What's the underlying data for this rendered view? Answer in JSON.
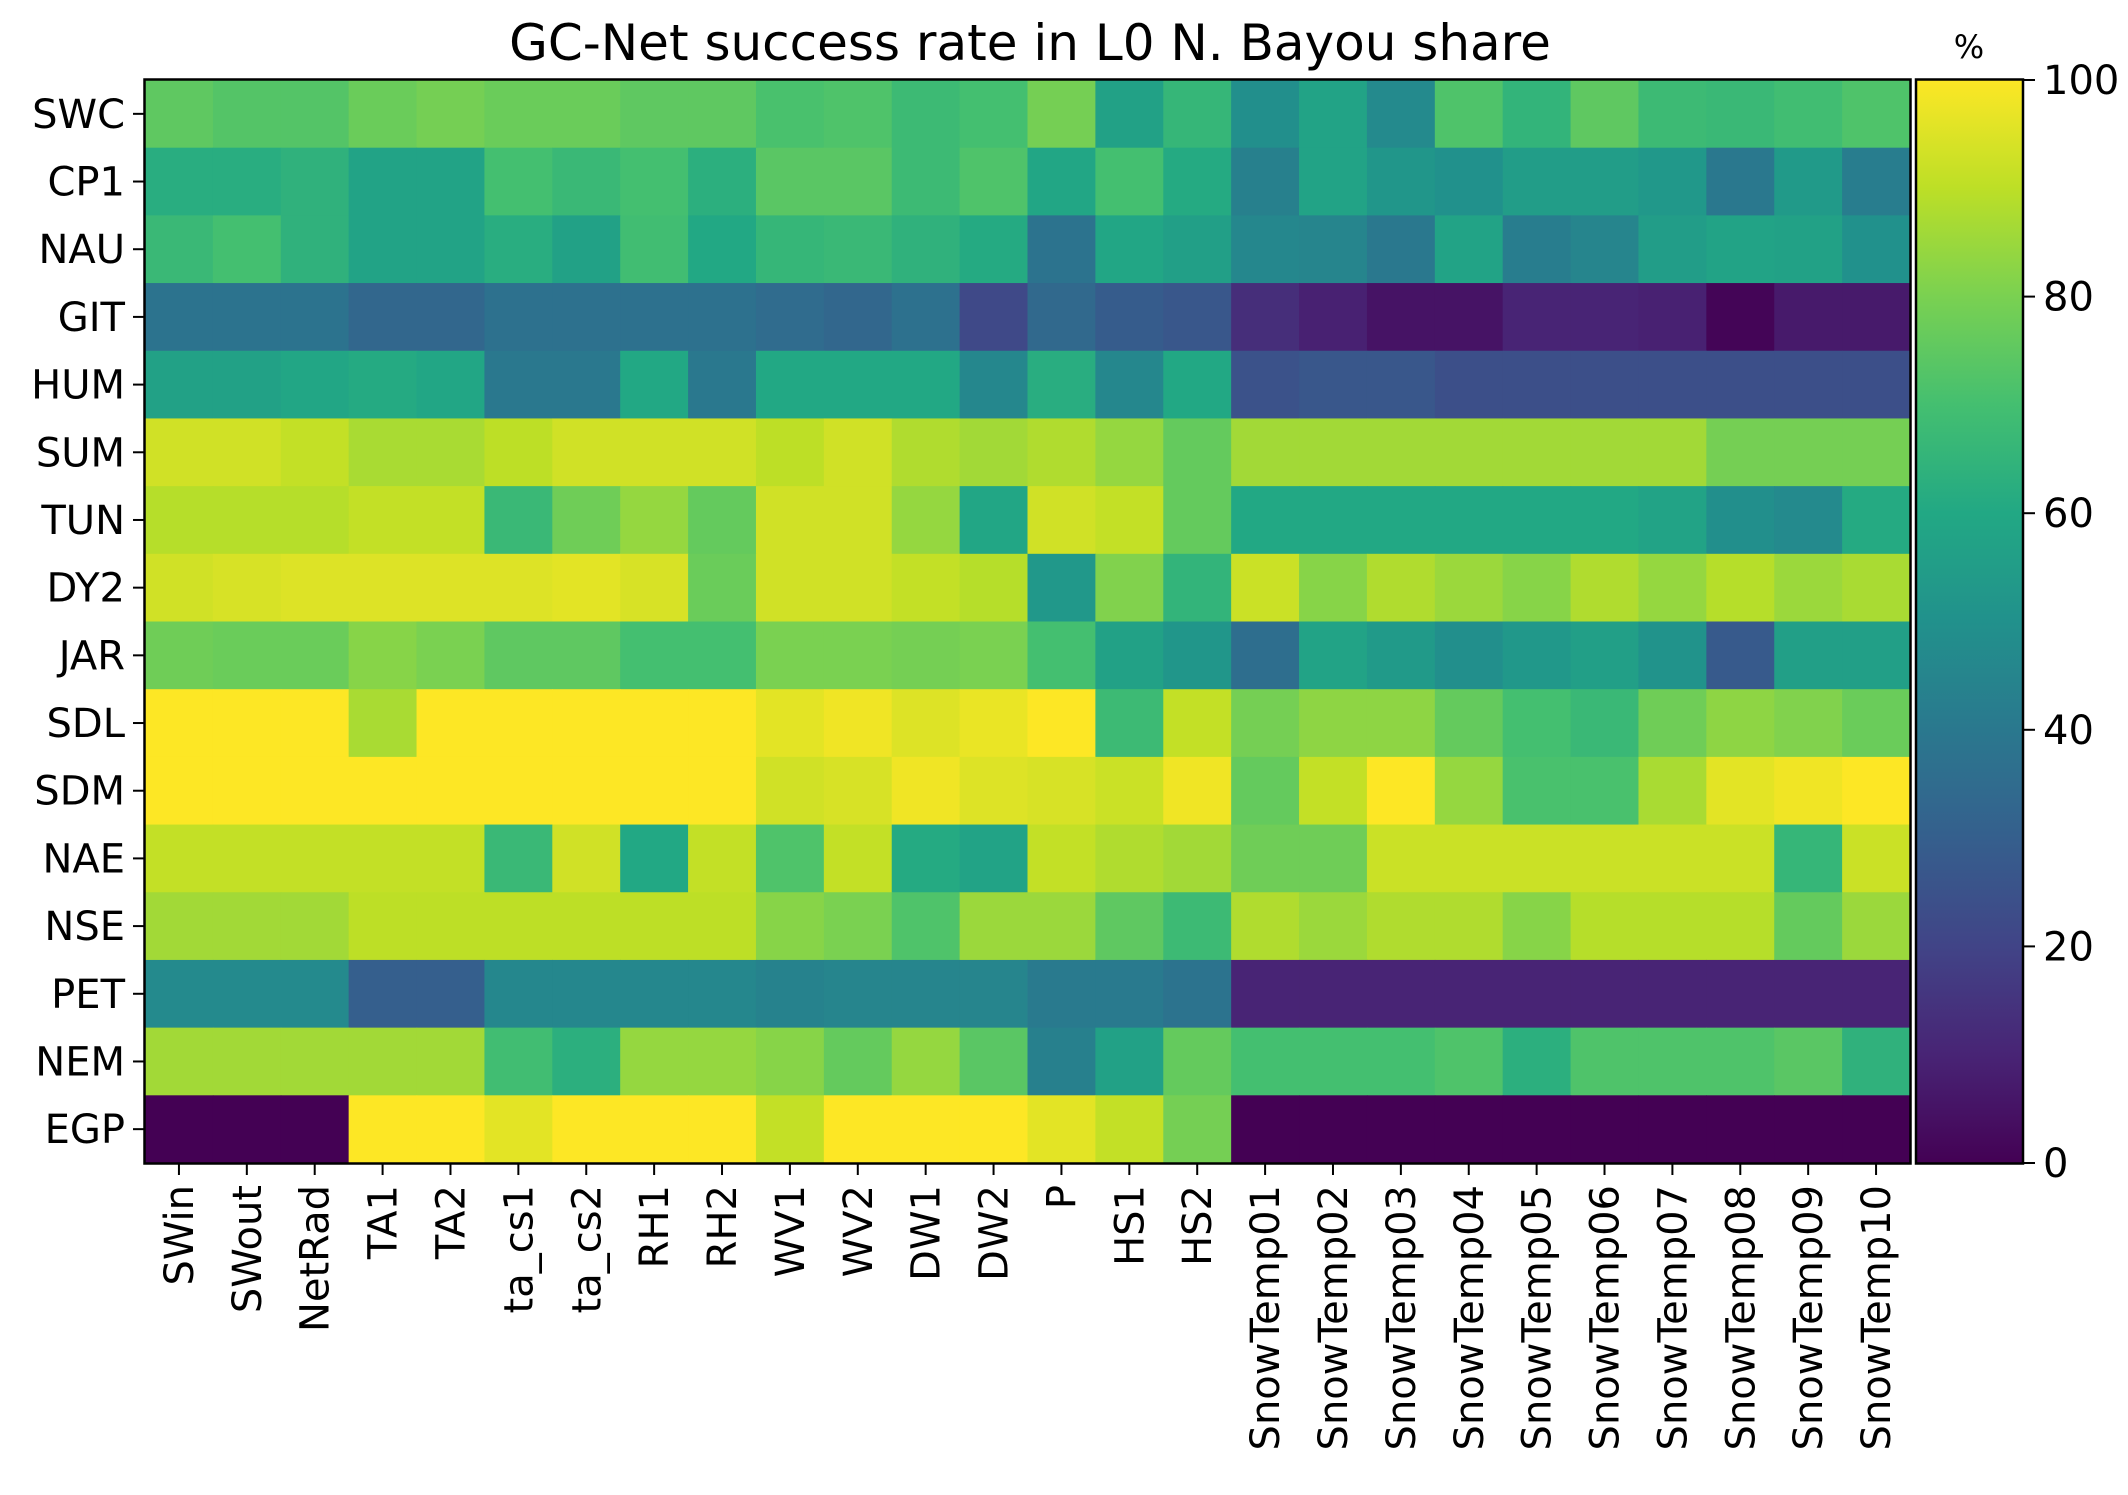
{
  "chart_data": {
    "type": "heatmap",
    "title": "GC-Net success rate in L0 N. Bayou share",
    "xlabel": "",
    "ylabel": "",
    "colormap": "viridis",
    "x": [
      "SWin",
      "SWout",
      "NetRad",
      "TA1",
      "TA2",
      "ta_cs1",
      "ta_cs2",
      "RH1",
      "RH2",
      "WV1",
      "WV2",
      "DW1",
      "DW2",
      "P",
      "HS1",
      "HS2",
      "SnowTemp01",
      "SnowTemp02",
      "SnowTemp03",
      "SnowTemp04",
      "SnowTemp05",
      "SnowTemp06",
      "SnowTemp07",
      "SnowTemp08",
      "SnowTemp09",
      "SnowTemp10"
    ],
    "y": [
      "SWC",
      "CP1",
      "NAU",
      "GIT",
      "HUM",
      "SUM",
      "TUN",
      "DY2",
      "JAR",
      "SDL",
      "SDM",
      "NAE",
      "NSE",
      "PET",
      "NEM",
      "EGP"
    ],
    "values": [
      [
        75,
        73,
        73,
        77,
        79,
        77,
        77,
        75,
        75,
        71,
        72,
        68,
        70,
        79,
        57,
        66,
        49,
        58,
        47,
        72,
        65,
        75,
        68,
        67,
        69,
        72
      ],
      [
        62,
        62,
        64,
        58,
        58,
        70,
        67,
        70,
        63,
        74,
        74,
        68,
        72,
        59,
        70,
        61,
        43,
        58,
        52,
        50,
        55,
        55,
        53,
        40,
        54,
        42
      ],
      [
        67,
        70,
        64,
        58,
        58,
        62,
        57,
        69,
        60,
        66,
        67,
        64,
        61,
        38,
        59,
        56,
        46,
        45,
        40,
        58,
        42,
        45,
        55,
        58,
        57,
        50
      ],
      [
        38,
        38,
        38,
        33,
        33,
        37,
        37,
        37,
        37,
        35,
        33,
        37,
        22,
        34,
        29,
        27,
        13,
        9,
        5,
        5,
        10,
        10,
        9,
        1,
        7,
        7
      ],
      [
        57,
        57,
        59,
        61,
        59,
        40,
        40,
        60,
        40,
        60,
        60,
        60,
        46,
        62,
        46,
        60,
        25,
        27,
        27,
        24,
        24,
        24,
        24,
        24,
        24,
        24
      ],
      [
        93,
        93,
        91,
        87,
        87,
        90,
        93,
        93,
        93,
        90,
        93,
        88,
        86,
        88,
        84,
        76,
        86,
        86,
        86,
        86,
        86,
        86,
        86,
        79,
        79,
        79
      ],
      [
        89,
        89,
        89,
        91,
        91,
        67,
        78,
        84,
        76,
        93,
        93,
        84,
        59,
        93,
        91,
        76,
        60,
        60,
        60,
        60,
        60,
        60,
        58,
        49,
        47,
        61
      ],
      [
        93,
        94,
        95,
        95,
        95,
        95,
        96,
        94,
        77,
        93,
        93,
        91,
        89,
        53,
        81,
        65,
        92,
        82,
        88,
        85,
        82,
        88,
        84,
        89,
        85,
        87
      ],
      [
        78,
        77,
        77,
        82,
        80,
        75,
        75,
        70,
        70,
        80,
        80,
        79,
        80,
        70,
        57,
        52,
        36,
        58,
        54,
        49,
        53,
        56,
        51,
        28,
        56,
        56
      ],
      [
        100,
        100,
        100,
        87,
        100,
        100,
        100,
        100,
        100,
        96,
        98,
        95,
        97,
        100,
        68,
        91,
        79,
        83,
        83,
        76,
        70,
        67,
        78,
        83,
        81,
        77
      ],
      [
        100,
        100,
        100,
        100,
        100,
        100,
        100,
        100,
        100,
        93,
        94,
        98,
        95,
        94,
        92,
        98,
        76,
        91,
        100,
        84,
        71,
        71,
        87,
        96,
        98,
        100
      ],
      [
        91,
        91,
        91,
        91,
        91,
        67,
        93,
        60,
        91,
        72,
        91,
        61,
        58,
        91,
        88,
        86,
        78,
        78,
        92,
        92,
        92,
        92,
        92,
        92,
        66,
        92
      ],
      [
        86,
        86,
        86,
        90,
        90,
        90,
        90,
        90,
        90,
        82,
        80,
        72,
        85,
        85,
        75,
        68,
        88,
        85,
        88,
        88,
        82,
        89,
        89,
        89,
        76,
        85
      ],
      [
        47,
        47,
        47,
        30,
        30,
        46,
        46,
        46,
        46,
        44,
        45,
        45,
        45,
        41,
        41,
        38,
        10,
        10,
        10,
        10,
        10,
        10,
        10,
        10,
        10,
        10
      ],
      [
        86,
        86,
        86,
        86,
        86,
        69,
        63,
        84,
        84,
        82,
        76,
        84,
        74,
        43,
        57,
        76,
        70,
        70,
        70,
        72,
        63,
        72,
        72,
        72,
        74,
        64
      ],
      [
        0,
        0,
        0,
        100,
        100,
        96,
        100,
        100,
        100,
        91,
        100,
        100,
        100,
        96,
        91,
        79,
        0,
        0,
        0,
        0,
        0,
        0,
        0,
        0,
        0,
        0
      ]
    ],
    "vmin": 0,
    "vmax": 100,
    "colorbar": {
      "unit_label": "%",
      "ticks": [
        "0",
        "20",
        "40",
        "60",
        "80",
        "100"
      ]
    },
    "grid": false,
    "legend": "none"
  }
}
